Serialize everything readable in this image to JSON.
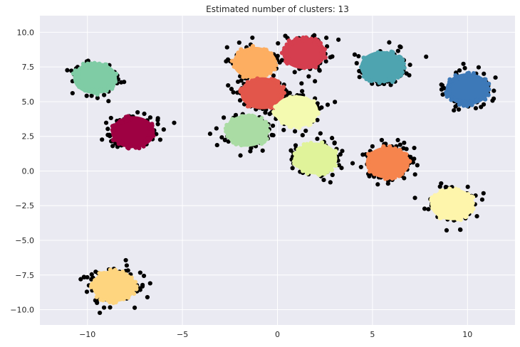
{
  "chart_data": {
    "type": "scatter",
    "title": "Estimated number of clusters: 13",
    "xlabel": "",
    "ylabel": "",
    "xlim": [
      -12.5,
      12.5
    ],
    "ylim": [
      -11.1,
      11.2
    ],
    "x_ticks": [
      -10,
      -5,
      0,
      5,
      10
    ],
    "y_ticks": [
      10.0,
      7.5,
      5.0,
      2.5,
      0.0,
      -2.5,
      -5.0,
      -7.5,
      -10.0
    ],
    "x_tick_labels": [
      "−10",
      "−5",
      "0",
      "5",
      "10"
    ],
    "y_tick_labels": [
      "10.0",
      "7.5",
      "5.0",
      "2.5",
      "0.0",
      "−2.5",
      "−5.0",
      "−7.5",
      "−10.0"
    ],
    "grid": true,
    "background": "#eaeaf2",
    "gridline_color": "#ffffff",
    "outlier_color": "#000000",
    "clusters": [
      {
        "center": [
          -9.6,
          6.7
        ],
        "color": "#7fcca5"
      },
      {
        "center": [
          -7.6,
          2.8
        ],
        "color": "#9e0142"
      },
      {
        "center": [
          -1.2,
          7.8
        ],
        "color": "#fdae61"
      },
      {
        "center": [
          1.4,
          8.5
        ],
        "color": "#d53e4f"
      },
      {
        "center": [
          5.5,
          7.5
        ],
        "color": "#4ea4b0"
      },
      {
        "center": [
          10.0,
          5.9
        ],
        "color": "#3d79b8"
      },
      {
        "center": [
          -0.8,
          5.6
        ],
        "color": "#e2564b"
      },
      {
        "center": [
          1.0,
          4.3
        ],
        "color": "#f4fab0"
      },
      {
        "center": [
          -1.6,
          2.9
        ],
        "color": "#aadca4"
      },
      {
        "center": [
          2.0,
          0.9
        ],
        "color": "#e0f39a"
      },
      {
        "center": [
          5.8,
          0.6
        ],
        "color": "#f6844d"
      },
      {
        "center": [
          9.2,
          -2.4
        ],
        "color": "#fef5ab"
      },
      {
        "center": [
          -8.6,
          -8.3
        ],
        "color": "#fed57f"
      }
    ]
  }
}
